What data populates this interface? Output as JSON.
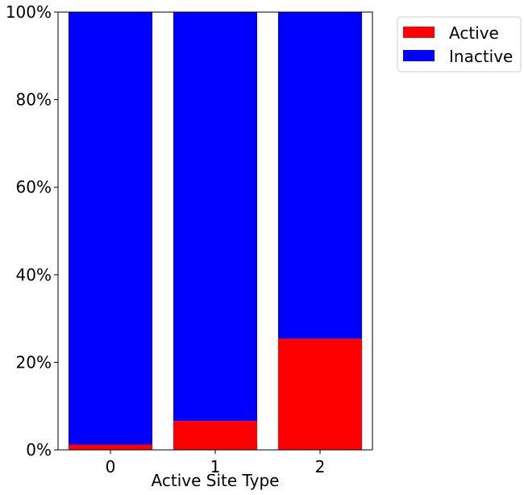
{
  "chart_data": {
    "type": "bar",
    "stacked": true,
    "normalized_percent": true,
    "xlabel": "Active Site Type",
    "ylabel": "",
    "categories": [
      "0",
      "1",
      "2"
    ],
    "ylim": [
      0,
      100
    ],
    "yticks": [
      0,
      20,
      40,
      60,
      80,
      100
    ],
    "ytick_labels": [
      "0%",
      "20%",
      "40%",
      "60%",
      "80%",
      "100%"
    ],
    "series": [
      {
        "name": "Active",
        "color": "#ff0000",
        "values": [
          1.2,
          6.6,
          25.4
        ]
      },
      {
        "name": "Inactive",
        "color": "#0000ff",
        "values": [
          98.8,
          93.4,
          74.6
        ]
      }
    ],
    "legend": {
      "placement": "outside-top-right",
      "labels": [
        "Active",
        "Inactive"
      ]
    },
    "grid": false
  }
}
